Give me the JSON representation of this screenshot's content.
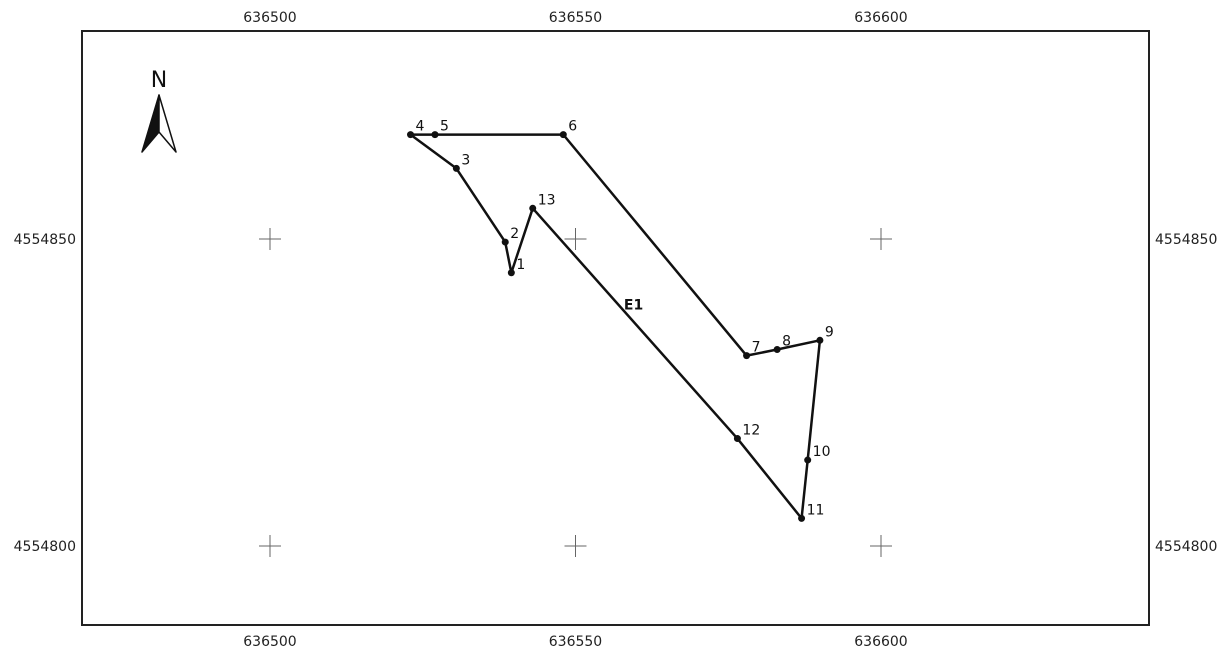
{
  "map": {
    "x_ticks": [
      {
        "value": 636500,
        "label": "636500"
      },
      {
        "value": 636550,
        "label": "636550"
      },
      {
        "value": 636600,
        "label": "636600"
      }
    ],
    "y_ticks": [
      {
        "value": 4554850,
        "label": "4554850"
      },
      {
        "value": 4554800,
        "label": "4554800"
      }
    ],
    "north_arrow_label": "N",
    "parcel": {
      "label": "E1",
      "label_position": {
        "x": 636559.5,
        "y": 4554838.5
      },
      "vertices": [
        {
          "id": "1",
          "x": 636539.5,
          "y": 4554844.5
        },
        {
          "id": "2",
          "x": 636538.5,
          "y": 4554849.5
        },
        {
          "id": "3",
          "x": 636530.5,
          "y": 4554861.5
        },
        {
          "id": "4",
          "x": 636523,
          "y": 4554867
        },
        {
          "id": "5",
          "x": 636527,
          "y": 4554867
        },
        {
          "id": "6",
          "x": 636548,
          "y": 4554867
        },
        {
          "id": "7",
          "x": 636578,
          "y": 4554831
        },
        {
          "id": "8",
          "x": 636583,
          "y": 4554832
        },
        {
          "id": "9",
          "x": 636590,
          "y": 4554833.5
        },
        {
          "id": "10",
          "x": 636588,
          "y": 4554814
        },
        {
          "id": "11",
          "x": 636587,
          "y": 4554804.5
        },
        {
          "id": "12",
          "x": 636576.5,
          "y": 4554817.5
        },
        {
          "id": "13",
          "x": 636543,
          "y": 4554855
        }
      ]
    }
  }
}
